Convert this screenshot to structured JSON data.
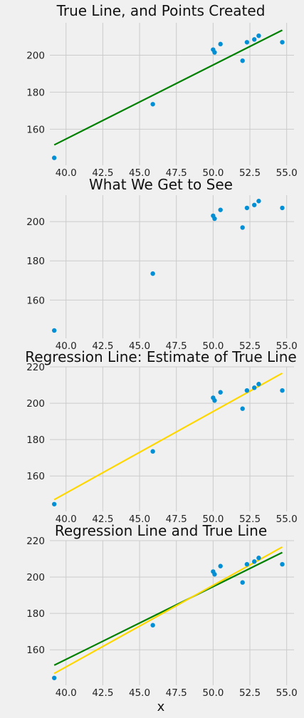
{
  "figure": {
    "xlabel": "x"
  },
  "chart_data": [
    {
      "type": "scatter",
      "title": "True Line, and Points Created",
      "xlabel": "",
      "ylabel": "",
      "xlim": [
        38.9,
        55.5
      ],
      "ylim": [
        140.5,
        217.5
      ],
      "xticks": [
        "40.0",
        "42.5",
        "45.0",
        "47.5",
        "50.0",
        "52.5",
        "55.0"
      ],
      "yticks": [
        "160",
        "180",
        "200"
      ],
      "grid": true,
      "points": {
        "color": "#008fd5",
        "x": [
          39.2,
          45.9,
          50.0,
          50.1,
          50.5,
          52.0,
          52.3,
          52.8,
          53.1,
          54.7
        ],
        "y": [
          144.5,
          173.5,
          203.0,
          201.5,
          206.0,
          197.0,
          207.0,
          208.5,
          210.5,
          207.0
        ]
      },
      "lines": [
        {
          "color": "#008000",
          "x": [
            39.2,
            54.7
          ],
          "y": [
            151.5,
            213.5
          ]
        }
      ]
    },
    {
      "type": "scatter",
      "title": "What We Get to See",
      "xlabel": "",
      "ylabel": "",
      "xlim": [
        38.9,
        55.5
      ],
      "ylim": [
        140.5,
        213.5
      ],
      "xticks": [
        "40.0",
        "42.5",
        "45.0",
        "47.5",
        "50.0",
        "52.5",
        "55.0"
      ],
      "yticks": [
        "160",
        "180",
        "200"
      ],
      "grid": true,
      "points": {
        "color": "#008fd5",
        "x": [
          39.2,
          45.9,
          50.0,
          50.1,
          50.5,
          52.0,
          52.3,
          52.8,
          53.1,
          54.7
        ],
        "y": [
          144.5,
          173.5,
          203.0,
          201.5,
          206.0,
          197.0,
          207.0,
          208.5,
          210.5,
          207.0
        ]
      },
      "lines": []
    },
    {
      "type": "scatter",
      "title": "Regression Line: Estimate of True Line",
      "xlabel": "",
      "ylabel": "",
      "xlim": [
        38.9,
        55.5
      ],
      "ylim": [
        140.5,
        220.0
      ],
      "xticks": [
        "40.0",
        "42.5",
        "45.0",
        "47.5",
        "50.0",
        "52.5",
        "55.0"
      ],
      "yticks": [
        "160",
        "180",
        "200",
        "220"
      ],
      "grid": true,
      "points": {
        "color": "#008fd5",
        "x": [
          39.2,
          45.9,
          50.0,
          50.1,
          50.5,
          52.0,
          52.3,
          52.8,
          53.1,
          54.7
        ],
        "y": [
          144.5,
          173.5,
          203.0,
          201.5,
          206.0,
          197.0,
          207.0,
          208.5,
          210.5,
          207.0
        ]
      },
      "lines": [
        {
          "color": "#ffd700",
          "x": [
            39.2,
            54.7
          ],
          "y": [
            147.0,
            216.5
          ]
        }
      ]
    },
    {
      "type": "scatter",
      "title": "Regression Line and True Line",
      "xlabel": "",
      "ylabel": "",
      "xlim": [
        38.9,
        55.5
      ],
      "ylim": [
        140.5,
        220.0
      ],
      "xticks": [
        "40.0",
        "42.5",
        "45.0",
        "47.5",
        "50.0",
        "52.5",
        "55.0"
      ],
      "yticks": [
        "160",
        "180",
        "200",
        "220"
      ],
      "grid": true,
      "points": {
        "color": "#008fd5",
        "x": [
          39.2,
          45.9,
          50.0,
          50.1,
          50.5,
          52.0,
          52.3,
          52.8,
          53.1,
          54.7
        ],
        "y": [
          144.5,
          173.5,
          203.0,
          201.5,
          206.0,
          197.0,
          207.0,
          208.5,
          210.5,
          207.0
        ]
      },
      "lines": [
        {
          "color": "#008000",
          "x": [
            39.2,
            54.7
          ],
          "y": [
            151.5,
            213.5
          ]
        },
        {
          "color": "#ffd700",
          "x": [
            39.2,
            54.7
          ],
          "y": [
            147.0,
            216.5
          ]
        }
      ]
    }
  ]
}
